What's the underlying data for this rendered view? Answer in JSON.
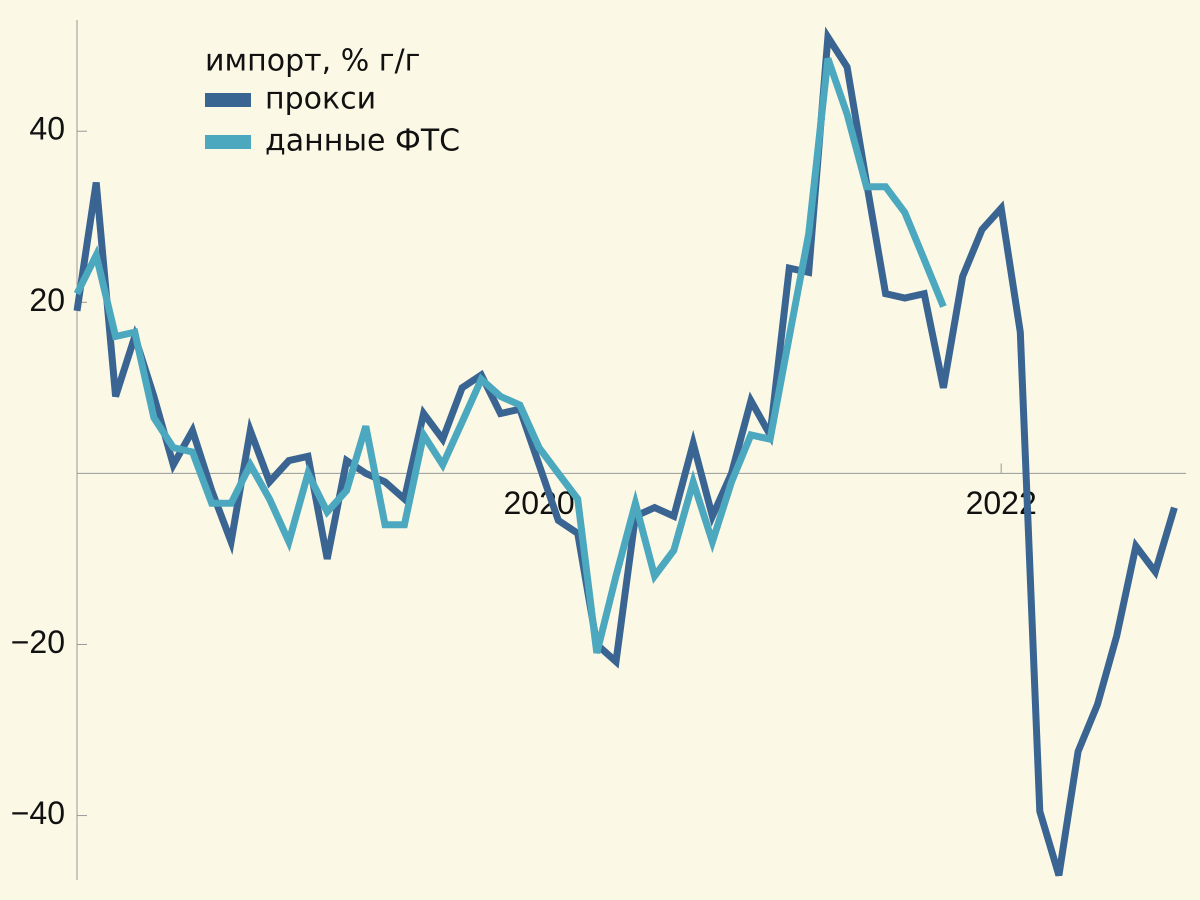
{
  "chart_data": {
    "type": "line",
    "legend_title": "импорт, % г/г",
    "x": [
      2018,
      2018.083,
      2018.167,
      2018.25,
      2018.333,
      2018.417,
      2018.5,
      2018.583,
      2018.667,
      2018.75,
      2018.833,
      2018.917,
      2019,
      2019.083,
      2019.167,
      2019.25,
      2019.333,
      2019.417,
      2019.5,
      2019.583,
      2019.667,
      2019.75,
      2019.833,
      2019.917,
      2020,
      2020.083,
      2020.167,
      2020.25,
      2020.333,
      2020.417,
      2020.5,
      2020.583,
      2020.667,
      2020.75,
      2020.833,
      2020.917,
      2021,
      2021.083,
      2021.167,
      2021.25,
      2021.333,
      2021.417,
      2021.5,
      2021.583,
      2021.667,
      2021.75,
      2021.833,
      2021.917,
      2022,
      2022.083,
      2022.167,
      2022.25,
      2022.333,
      2022.417,
      2022.5,
      2022.583,
      2022.667,
      2022.75
    ],
    "series": [
      {
        "name": "прокси",
        "color": "#3a6592",
        "values": [
          19,
          34,
          9,
          16,
          9,
          1,
          5,
          -2,
          -8,
          5,
          -1,
          1.5,
          2,
          -10,
          1.5,
          0,
          -1,
          -3,
          7,
          4,
          10,
          11.5,
          7,
          7.5,
          1,
          -5.5,
          -7,
          -20,
          -22,
          -5,
          -4,
          -5,
          3.5,
          -5,
          0,
          8.5,
          4.5,
          24,
          23.5,
          51,
          47.5,
          34,
          21,
          20.5,
          21,
          10,
          23,
          28.5,
          31,
          16.5,
          -39.5,
          -47,
          -32.5,
          -27,
          -19,
          -8.5,
          -11.5,
          -4
        ]
      },
      {
        "name": "данные ФТС",
        "color": "#4ba8bf",
        "values": [
          21,
          25.5,
          16,
          16.5,
          6.5,
          3,
          2.5,
          -3.5,
          -3.5,
          1,
          -3,
          -8,
          0,
          -4.5,
          -2,
          5.5,
          -6,
          -6,
          4.5,
          1,
          6,
          11,
          9,
          8,
          3,
          0,
          -3,
          -21,
          -12,
          -3.5,
          -12,
          -9,
          -1,
          -8,
          -1,
          4.5,
          4,
          16,
          28,
          48.5,
          42,
          33.5,
          33.5,
          30.5,
          25,
          19.5,
          null,
          null,
          null,
          null,
          null,
          null,
          null,
          null,
          null,
          null,
          null,
          null
        ]
      }
    ],
    "xlim": [
      2018,
      2022.8
    ],
    "xticks": [
      2020,
      2022
    ],
    "ylim": [
      -48,
      53
    ],
    "yticks": [
      {
        "value": -40,
        "label": "−40"
      },
      {
        "value": -20,
        "label": "−20"
      },
      20,
      40
    ]
  }
}
